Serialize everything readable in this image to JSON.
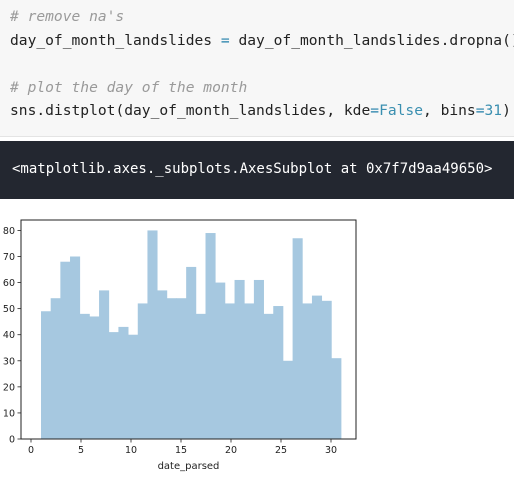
{
  "code_cell": {
    "line1": "# remove na's",
    "line2": {
      "var": "day_of_month_landslides",
      "op": "=",
      "rhs_obj": "day_of_month_landslides.",
      "rhs_method": "dropna",
      "rhs_end": "()"
    },
    "line3": "# plot the day of the month",
    "line4": {
      "obj": "sns.",
      "fn": "distplot",
      "args1": "(day_of_month_landslides, kde",
      "eq1": "=",
      "val1": "False",
      "args2": ", bins",
      "eq2": "=",
      "val2": "31",
      "end": ")"
    }
  },
  "output_cell": {
    "text": "<matplotlib.axes._subplots.AxesSubplot at 0x7f7d9aa49650>"
  },
  "colors": {
    "bar": "#a6c8e0",
    "output_bg": "#232730"
  },
  "chart_data": {
    "type": "bar",
    "xlabel": "date_parsed",
    "xlim": [
      -1,
      32.5
    ],
    "ylim": [
      0,
      84
    ],
    "xticks": [
      0,
      5,
      10,
      15,
      20,
      25,
      30
    ],
    "yticks": [
      0,
      10,
      20,
      30,
      40,
      50,
      60,
      70,
      80
    ],
    "bin_width": 0.9677,
    "bin_start": 1,
    "values": [
      49,
      54,
      68,
      70,
      48,
      47,
      57,
      41,
      43,
      40,
      52,
      80,
      57,
      54,
      54,
      66,
      48,
      79,
      60,
      52,
      61,
      52,
      61,
      48,
      51,
      30,
      77,
      52,
      55,
      53,
      31
    ],
    "grid": false
  }
}
